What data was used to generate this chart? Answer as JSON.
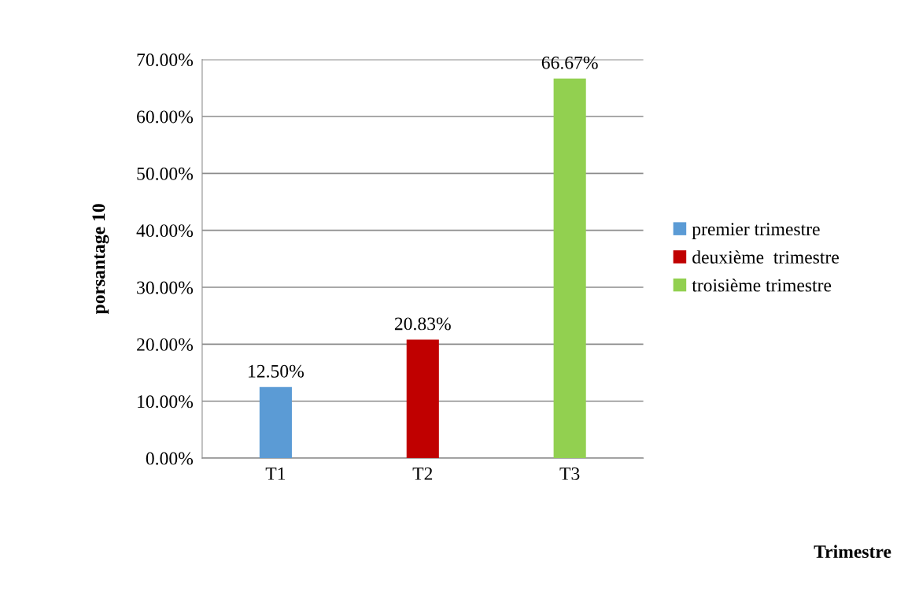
{
  "chart_data": {
    "type": "bar",
    "ylabel": "porsantage 10",
    "annotations": [
      "Trimestre"
    ],
    "categories": [
      "T1",
      "T2",
      "T3"
    ],
    "series": [
      {
        "name": "premier trimestre",
        "color": "#5b9bd5",
        "values": [
          12.5,
          null,
          null
        ],
        "value_labels": [
          "12.50%",
          null,
          null
        ]
      },
      {
        "name": "deuxième  trimestre",
        "color": "#c00000",
        "values": [
          null,
          20.83,
          null
        ],
        "value_labels": [
          null,
          "20.83%",
          null
        ]
      },
      {
        "name": "troisième trimestre",
        "color": "#92d050",
        "values": [
          null,
          null,
          66.67
        ],
        "value_labels": [
          null,
          null,
          "66.67%"
        ]
      }
    ],
    "ylim": [
      0,
      70
    ],
    "yticks": [
      {
        "value": 0,
        "label": "0.00%"
      },
      {
        "value": 10,
        "label": "10.00%"
      },
      {
        "value": 20,
        "label": "20.00%"
      },
      {
        "value": 30,
        "label": "30.00%"
      },
      {
        "value": 40,
        "label": "40.00%"
      },
      {
        "value": 50,
        "label": "50.00%"
      },
      {
        "value": 60,
        "label": "60.00%"
      },
      {
        "value": 70,
        "label": "70.00%"
      }
    ],
    "grid": "y",
    "legend": "right"
  }
}
